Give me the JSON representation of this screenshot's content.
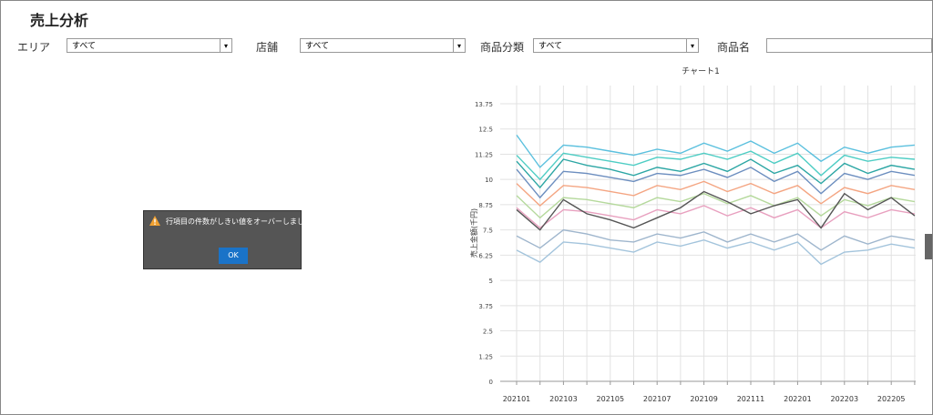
{
  "header": {
    "title": "売上分析"
  },
  "filters": [
    {
      "label": "エリア",
      "value": "すべて"
    },
    {
      "label": "店舗",
      "value": "すべて"
    },
    {
      "label": "商品分類",
      "value": "すべて"
    },
    {
      "label": "商品名"
    }
  ],
  "dialog": {
    "message": "行項目の件数がしきい値をオーバーしました。",
    "button": "OK"
  },
  "chart_data": {
    "type": "line",
    "title": "チャート1",
    "y_label": "売上金額(千円)",
    "categories": [
      "202101",
      null,
      "202103",
      null,
      "202105",
      null,
      "202107",
      null,
      "202109",
      null,
      "202111",
      null,
      "202201",
      null,
      "202203",
      null,
      "202205",
      null
    ],
    "series": [
      {
        "color": "#5bc0de",
        "values": [
          12.2,
          10.6,
          11.7,
          11.6,
          11.4,
          11.2,
          11.5,
          11.3,
          11.8,
          11.4,
          11.9,
          11.3,
          11.8,
          10.9,
          11.6,
          11.3,
          11.6,
          11.7
        ]
      },
      {
        "color": "#4ecdc4",
        "values": [
          11.2,
          10.0,
          11.3,
          11.1,
          10.9,
          10.7,
          11.1,
          11.0,
          11.3,
          11.0,
          11.4,
          10.8,
          11.3,
          10.2,
          11.2,
          10.9,
          11.1,
          11.0
        ]
      },
      {
        "color": "#2ca6a4",
        "values": [
          10.9,
          9.6,
          11.0,
          10.7,
          10.5,
          10.2,
          10.6,
          10.4,
          10.8,
          10.4,
          11.0,
          10.3,
          10.7,
          9.8,
          10.8,
          10.3,
          10.7,
          10.5
        ]
      },
      {
        "color": "#6c8ebf",
        "values": [
          10.5,
          9.1,
          10.4,
          10.3,
          10.1,
          9.9,
          10.3,
          10.2,
          10.5,
          10.1,
          10.6,
          9.9,
          10.4,
          9.3,
          10.3,
          10.0,
          10.4,
          10.2
        ]
      },
      {
        "color": "#f4a582",
        "values": [
          9.8,
          8.7,
          9.7,
          9.6,
          9.4,
          9.2,
          9.7,
          9.5,
          9.9,
          9.4,
          9.8,
          9.3,
          9.7,
          8.8,
          9.6,
          9.3,
          9.7,
          9.5
        ]
      },
      {
        "color": "#b5d99c",
        "values": [
          9.2,
          8.1,
          9.1,
          9.0,
          8.8,
          8.6,
          9.1,
          8.9,
          9.3,
          8.8,
          9.2,
          8.7,
          9.1,
          8.2,
          9.0,
          8.7,
          9.1,
          8.9
        ]
      },
      {
        "color": "#e8a0bf",
        "values": [
          8.6,
          7.6,
          8.5,
          8.4,
          8.2,
          8.0,
          8.5,
          8.3,
          8.7,
          8.2,
          8.6,
          8.1,
          8.5,
          7.6,
          8.4,
          8.1,
          8.5,
          8.3
        ]
      },
      {
        "color": "#555555",
        "values": [
          8.5,
          7.5,
          9.0,
          8.3,
          8.0,
          7.6,
          8.1,
          8.6,
          9.4,
          8.9,
          8.3,
          8.7,
          9.0,
          7.6,
          9.3,
          8.5,
          9.1,
          8.2
        ]
      },
      {
        "color": "#9fb6cd",
        "values": [
          7.2,
          6.6,
          7.5,
          7.3,
          7.0,
          6.9,
          7.3,
          7.1,
          7.4,
          6.9,
          7.3,
          6.9,
          7.3,
          6.5,
          7.2,
          6.8,
          7.2,
          7.0
        ]
      },
      {
        "color": "#a3c4dc",
        "values": [
          6.5,
          5.9,
          6.9,
          6.8,
          6.6,
          6.4,
          6.9,
          6.7,
          7.0,
          6.6,
          6.9,
          6.5,
          6.9,
          5.8,
          6.4,
          6.5,
          6.8,
          6.6
        ]
      }
    ],
    "ylim": [
      0,
      13.75
    ],
    "yticks": [
      0,
      1.25,
      2.5,
      3.75,
      5,
      6.25,
      7.5,
      8.75,
      10,
      11.25,
      12.5,
      13.75
    ],
    "grid": true
  }
}
